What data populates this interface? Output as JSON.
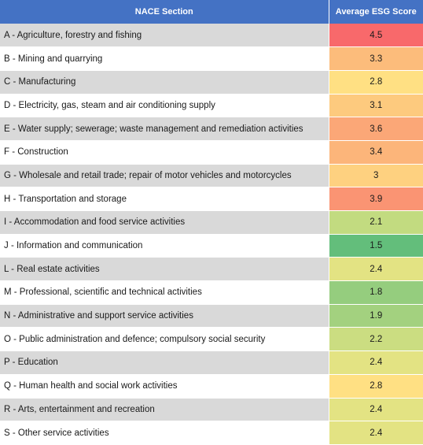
{
  "table": {
    "headers": [
      "NACE Section",
      "Average ESG Score"
    ],
    "rows": [
      {
        "section": "A - Agriculture, forestry and fishing",
        "score": "4.5",
        "color": "#f8696b"
      },
      {
        "section": "B - Mining and quarrying",
        "score": "3.3",
        "color": "#fcbc7b"
      },
      {
        "section": "C - Manufacturing",
        "score": "2.8",
        "color": "#ffe083"
      },
      {
        "section": "D - Electricity, gas, steam and air conditioning supply",
        "score": "3.1",
        "color": "#fdca7e"
      },
      {
        "section": "E - Water supply; sewerage; waste management and remediation activities",
        "score": "3.6",
        "color": "#fba777"
      },
      {
        "section": "F - Construction",
        "score": "3.4",
        "color": "#fcb57a"
      },
      {
        "section": "G - Wholesale and retail trade; repair of motor vehicles and motorcycles",
        "score": "3",
        "color": "#fed180"
      },
      {
        "section": "H - Transportation and storage",
        "score": "3.9",
        "color": "#fa9473"
      },
      {
        "section": "I - Accommodation and food service activities",
        "score": "2.1",
        "color": "#c2db80"
      },
      {
        "section": "J - Information and communication",
        "score": "1.5",
        "color": "#63be7b"
      },
      {
        "section": "L - Real estate activities",
        "score": "2.4",
        "color": "#e3e383"
      },
      {
        "section": "M - Professional, scientific and technical activities",
        "score": "1.8",
        "color": "#95cd7e"
      },
      {
        "section": "N - Administrative and support service activities",
        "score": "1.9",
        "color": "#a3d17f"
      },
      {
        "section": "O - Public administration and defence; compulsory social security",
        "score": "2.2",
        "color": "#cbdd81"
      },
      {
        "section": "P - Education",
        "score": "2.4",
        "color": "#e3e383"
      },
      {
        "section": "Q - Human health and social work activities",
        "score": "2.8",
        "color": "#ffe083"
      },
      {
        "section": "R - Arts, entertainment and recreation",
        "score": "2.4",
        "color": "#e3e383"
      },
      {
        "section": "S - Other service activities",
        "score": "2.4",
        "color": "#e3e383"
      }
    ]
  }
}
